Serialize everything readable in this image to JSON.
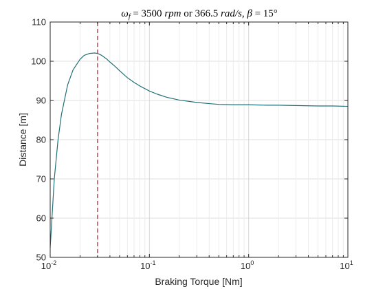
{
  "chart_data": {
    "type": "line",
    "title": {
      "omega": "ω",
      "omega_sub": "f",
      "eq1": " = 3500 ",
      "rpm": "rpm",
      "or": " or ",
      "val2": "366.5 ",
      "rads": "rad/s",
      "comma": ", ",
      "beta": "β",
      "eq2": " = 15°"
    },
    "xlabel": "Braking Torque [Nm]",
    "ylabel": "Distance [m]",
    "x_scale": "log",
    "xlim": [
      0.01,
      10
    ],
    "ylim": [
      50,
      110
    ],
    "x_ticks": [
      {
        "base": "10",
        "exp": "-2"
      },
      {
        "base": "10",
        "exp": "-1"
      },
      {
        "base": "10",
        "exp": "0"
      },
      {
        "base": "10",
        "exp": "1"
      }
    ],
    "y_ticks": [
      "50",
      "60",
      "70",
      "80",
      "90",
      "100",
      "110"
    ],
    "y_tick_values": [
      50,
      60,
      70,
      80,
      90,
      100,
      110
    ],
    "grid": true,
    "series": [
      {
        "color": "#1f6f78",
        "x": [
          0.01,
          0.011,
          0.012,
          0.013,
          0.015,
          0.017,
          0.02,
          0.022,
          0.025,
          0.028,
          0.03,
          0.033,
          0.037,
          0.04,
          0.045,
          0.05,
          0.06,
          0.07,
          0.08,
          0.1,
          0.12,
          0.15,
          0.2,
          0.3,
          0.4,
          0.5,
          0.7,
          1.0,
          1.5,
          2,
          3,
          5,
          7,
          10
        ],
        "y": [
          52.5,
          70,
          80,
          86.5,
          94,
          97.8,
          100.5,
          101.5,
          102,
          102.1,
          102,
          101.5,
          100.6,
          99.8,
          98.7,
          97.6,
          95.8,
          94.6,
          93.7,
          92.4,
          91.6,
          90.8,
          90.1,
          89.5,
          89.2,
          89.0,
          88.9,
          88.9,
          88.8,
          88.8,
          88.7,
          88.6,
          88.6,
          88.5
        ]
      }
    ],
    "reference_line": {
      "x": 0.03,
      "color": "#d0284a",
      "style": "dashed"
    },
    "colors": {
      "axes": "#262626",
      "grid": "#dfdfdf"
    }
  }
}
